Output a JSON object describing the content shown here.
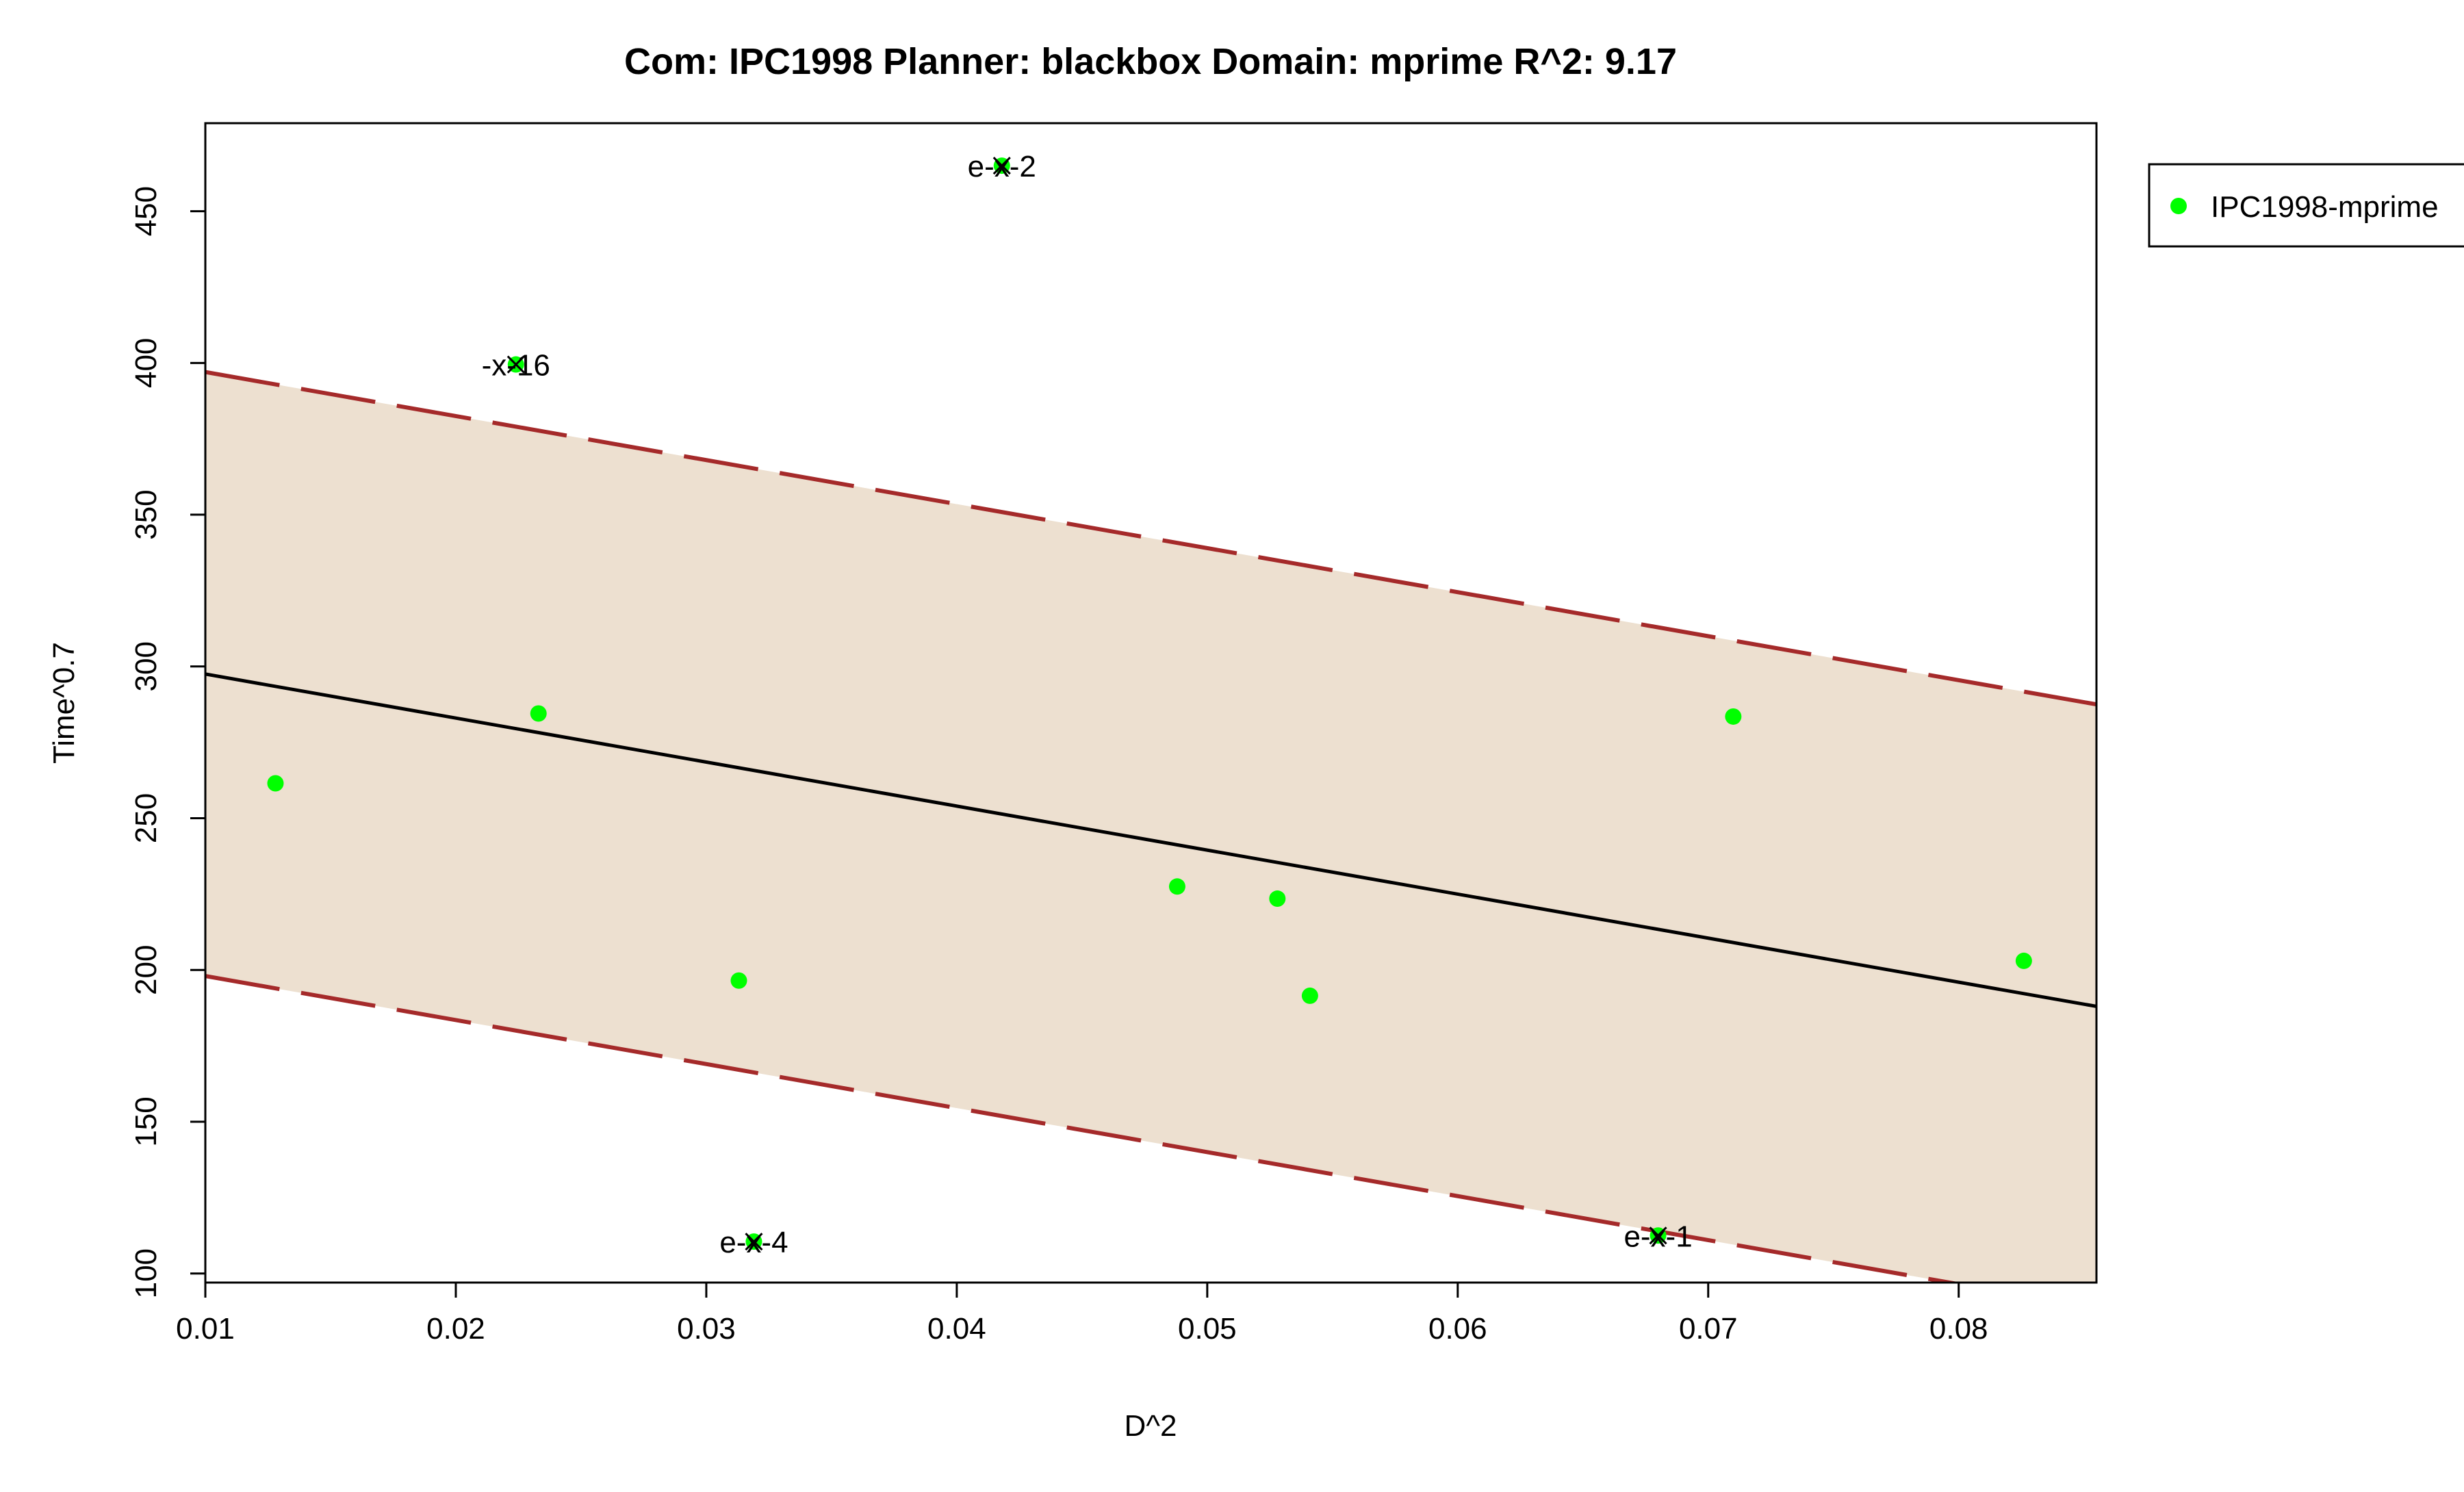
{
  "chart_data": {
    "type": "scatter",
    "title": "Com: IPC1998 Planner: blackbox Domain: mprime R^2: 9.17",
    "xlabel": "D^2",
    "ylabel": "Time^0.7",
    "xlim": [
      0.01,
      0.0855
    ],
    "ylim": [
      97,
      479
    ],
    "xticks": [
      0.01,
      0.02,
      0.03,
      0.04,
      0.05,
      0.06,
      0.07,
      0.08
    ],
    "xtick_labels": [
      "0.01",
      "0.02",
      "0.03",
      "0.04",
      "0.05",
      "0.06",
      "0.07",
      "0.08"
    ],
    "yticks": [
      100,
      150,
      200,
      250,
      300,
      350,
      400,
      450
    ],
    "ytick_labels": [
      "100",
      "150",
      "200",
      "250",
      "300",
      "350",
      "400",
      "450"
    ],
    "grid": false,
    "legend_position": "right, outside plot",
    "series": [
      {
        "name": "IPC1998-mprime",
        "color": "#00ff00",
        "points": [
          {
            "x": 0.0128,
            "y": 261.5
          },
          {
            "x": 0.0224,
            "y": 399.5,
            "label": "-x-16",
            "marker": "x"
          },
          {
            "x": 0.0233,
            "y": 284.5
          },
          {
            "x": 0.0313,
            "y": 196.5
          },
          {
            "x": 0.0319,
            "y": 110.5,
            "label": "e-x-4",
            "marker": "x"
          },
          {
            "x": 0.0418,
            "y": 465.0,
            "label": "e-x-2",
            "marker": "x"
          },
          {
            "x": 0.0488,
            "y": 227.5
          },
          {
            "x": 0.0528,
            "y": 223.5
          },
          {
            "x": 0.0541,
            "y": 191.5
          },
          {
            "x": 0.068,
            "y": 112.5,
            "label": "e-x-1",
            "marker": "x"
          },
          {
            "x": 0.071,
            "y": 283.5
          },
          {
            "x": 0.0826,
            "y": 203.0
          }
        ]
      }
    ],
    "fit_line": {
      "x": [
        0.01,
        0.0855
      ],
      "y": [
        297.5,
        188.0
      ],
      "color": "#000000"
    },
    "band_upper": {
      "x": [
        0.01,
        0.0855
      ],
      "y": [
        397.0,
        287.5
      ],
      "color": "#a52a2a"
    },
    "band_lower": {
      "x": [
        0.01,
        0.0855
      ],
      "y": [
        198.0,
        88.5
      ],
      "color": "#a52a2a"
    },
    "band_fill_color": "#ede0d0"
  }
}
